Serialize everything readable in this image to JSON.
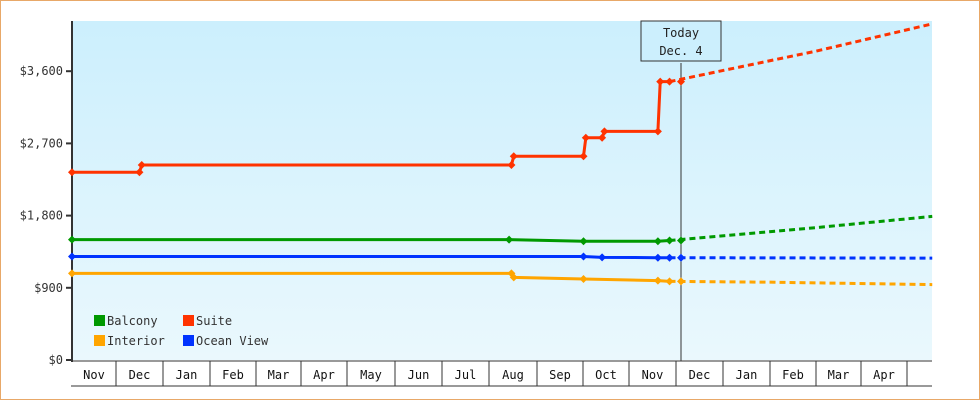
{
  "chart_data": {
    "type": "line",
    "title": "",
    "xlabel": "",
    "ylabel": "",
    "ylim": [
      0,
      4200
    ],
    "y_ticks": [
      "$0",
      "$900",
      "$1,800",
      "$2,700",
      "$3,600"
    ],
    "y_tick_values": [
      0,
      900,
      1800,
      2700,
      3600
    ],
    "x_ticks": [
      "Nov",
      "Dec",
      "Jan",
      "Feb",
      "Mar",
      "Apr",
      "May",
      "Jun",
      "Jul",
      "Aug",
      "Sep",
      "Oct",
      "Nov",
      "Dec",
      "Jan",
      "Feb",
      "Mar",
      "Apr"
    ],
    "grid": false,
    "legend_position": "lower-left",
    "annotation": {
      "line1": "Today",
      "line2": "Dec. 4"
    },
    "series": [
      {
        "name": "Balcony",
        "color": "#009900",
        "actual": [
          [
            0,
            1500
          ],
          [
            1.0,
            1500
          ],
          [
            6.0,
            1500
          ],
          [
            9.4,
            1500
          ],
          [
            11.0,
            1480
          ],
          [
            12.6,
            1480
          ],
          [
            12.85,
            1490
          ]
        ],
        "projected": [
          [
            12.85,
            1490
          ],
          [
            16.0,
            1650
          ],
          [
            18.5,
            1790
          ]
        ]
      },
      {
        "name": "Suite",
        "color": "#ff3300",
        "actual": [
          [
            0,
            2340
          ],
          [
            1.45,
            2340
          ],
          [
            1.5,
            2430
          ],
          [
            9.45,
            2430
          ],
          [
            9.5,
            2540
          ],
          [
            11.0,
            2540
          ],
          [
            11.05,
            2770
          ],
          [
            11.4,
            2770
          ],
          [
            11.45,
            2850
          ],
          [
            12.6,
            2850
          ],
          [
            12.65,
            3470
          ],
          [
            12.85,
            3470
          ]
        ],
        "projected": [
          [
            12.85,
            3470
          ],
          [
            16.0,
            3850
          ],
          [
            18.5,
            4190
          ]
        ]
      },
      {
        "name": "Interior",
        "color": "#ffa500",
        "actual": [
          [
            0,
            1080
          ],
          [
            9.45,
            1080
          ],
          [
            9.5,
            1030
          ],
          [
            11.0,
            1010
          ],
          [
            12.6,
            990
          ],
          [
            12.85,
            980
          ]
        ],
        "projected": [
          [
            12.85,
            980
          ],
          [
            15.0,
            970
          ],
          [
            18.5,
            940
          ]
        ]
      },
      {
        "name": "Ocean View",
        "color": "#0033ff",
        "actual": [
          [
            0,
            1290
          ],
          [
            9.45,
            1290
          ],
          [
            11.0,
            1290
          ],
          [
            11.4,
            1280
          ],
          [
            12.6,
            1275
          ],
          [
            12.85,
            1275
          ]
        ],
        "projected": [
          [
            12.85,
            1275
          ],
          [
            18.5,
            1270
          ]
        ]
      }
    ]
  },
  "legend": [
    {
      "label": "Balcony",
      "color": "#009900"
    },
    {
      "label": "Suite",
      "color": "#ff3300"
    },
    {
      "label": "Interior",
      "color": "#ffa500"
    },
    {
      "label": "Ocean View",
      "color": "#0033ff"
    }
  ]
}
